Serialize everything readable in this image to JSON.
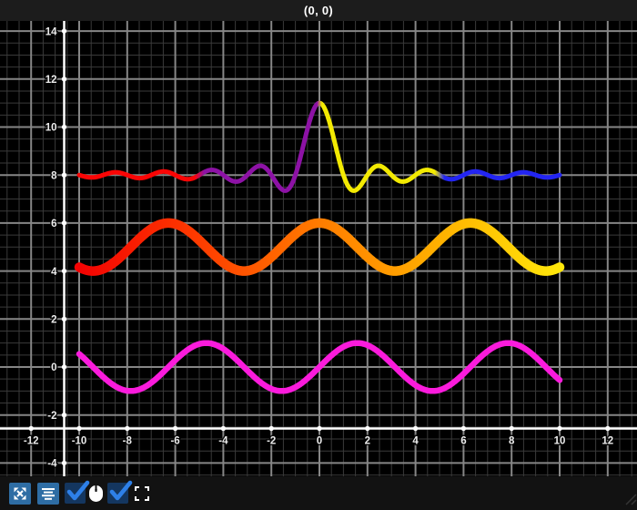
{
  "header": {
    "title": "(0, 0)"
  },
  "toolbar": {
    "buttons": [
      {
        "name": "expand-arrows",
        "icon": "expand-arrows-icon",
        "color": "#2e6da4"
      },
      {
        "name": "align-lines",
        "icon": "align-center-lines-icon",
        "color": "#2e6da4"
      }
    ],
    "checkboxes": [
      {
        "name": "checkbox-1",
        "checked": true,
        "box_color": "#14365f",
        "check_color": "#2e80e8"
      },
      {
        "name": "checkbox-2",
        "checked": true,
        "box_color": "#14365f",
        "check_color": "#2e80e8"
      }
    ],
    "icons": [
      {
        "name": "mouse-icon",
        "color": "#ffffff"
      },
      {
        "name": "fullscreen-corners-icon",
        "color": "#ffffff"
      }
    ]
  },
  "chart_data": {
    "type": "line",
    "title": "(0, 0)",
    "background": "#000000",
    "x_range": [
      -13.3,
      13.2
    ],
    "y_range": [
      -4.55,
      14.4
    ],
    "x_ticks": [
      -12,
      -10,
      -8,
      -6,
      -4,
      -2,
      0,
      2,
      4,
      6,
      8,
      10,
      12
    ],
    "y_ticks": [
      14,
      12,
      10,
      8,
      6,
      4,
      2,
      0,
      -2,
      -4
    ],
    "grid": {
      "minor_step": 0.5,
      "major_step": 2,
      "minor_color": "#3a3a3a",
      "major_color": "#868686",
      "visible": true
    },
    "axis_color": "#ffffff",
    "tick_label_color": "#ececec",
    "series": [
      {
        "name": "sinc",
        "formula": "y = 8 + 3*sin(pi*x)/(pi*x)",
        "fn": "sinc",
        "params": {
          "base": 8,
          "amp": 3
        },
        "domain": [
          -10,
          10
        ],
        "width": 5,
        "color_stops": [
          {
            "at_x": -10.0,
            "color": "#fa0505"
          },
          {
            "at_x": -5.2,
            "color": "#fa0505"
          },
          {
            "at_x": -4.8,
            "color": "#8d12a5"
          },
          {
            "at_x": -0.1,
            "color": "#8d12a5"
          },
          {
            "at_x": 0.1,
            "color": "#f3ea02"
          },
          {
            "at_x": 4.8,
            "color": "#f3ea02"
          },
          {
            "at_x": 5.2,
            "color": "#2325f2"
          },
          {
            "at_x": 10.0,
            "color": "#2325f2"
          }
        ]
      },
      {
        "name": "cos",
        "formula": "y = 5 + cos(x)",
        "fn": "cos",
        "params": {
          "base": 5,
          "amp": 1
        },
        "domain": [
          -10,
          10
        ],
        "width": 10.5,
        "color_stops": [
          {
            "at_x": -10,
            "color": "#f30202"
          },
          {
            "at_x": -5,
            "color": "#fe3c00"
          },
          {
            "at_x": 0,
            "color": "#ff7c00"
          },
          {
            "at_x": 5,
            "color": "#ffb100"
          },
          {
            "at_x": 10,
            "color": "#ffe70a"
          }
        ]
      },
      {
        "name": "sin",
        "formula": "y = sin(x)",
        "fn": "sin",
        "params": {
          "base": 0,
          "amp": 1
        },
        "domain": [
          -10,
          10
        ],
        "width": 6.5,
        "color": "#fa1bdc"
      }
    ]
  }
}
